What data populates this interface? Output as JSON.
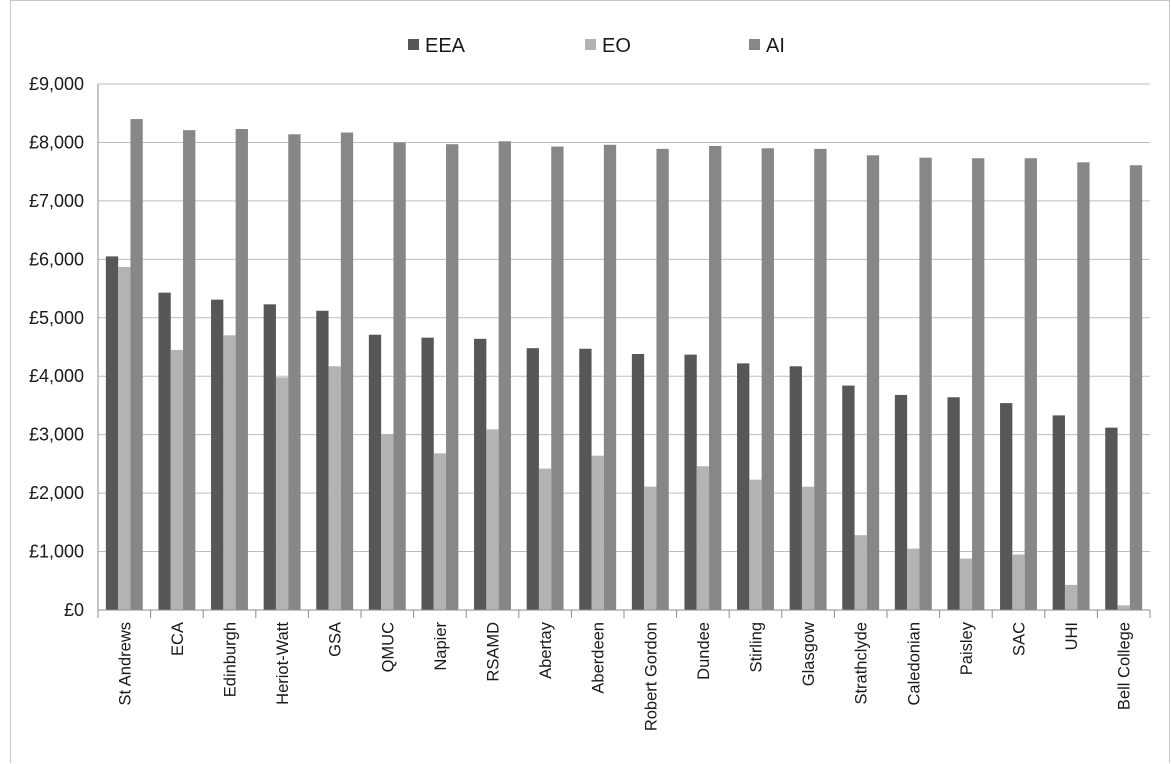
{
  "chart_data": {
    "type": "bar",
    "title": "",
    "xlabel": "",
    "ylabel": "",
    "ylim": [
      0,
      9000
    ],
    "yticks": [
      "£0",
      "£1,000",
      "£2,000",
      "£3,000",
      "£4,000",
      "£5,000",
      "£6,000",
      "£7,000",
      "£8,000",
      "£9,000"
    ],
    "grid": true,
    "legend_position": "top",
    "categories": [
      "St Andrews",
      "ECA",
      "Edinburgh",
      "Heriot-Watt",
      "GSA",
      "QMUC",
      "Napier",
      "RSAMD",
      "Abertay",
      "Aberdeen",
      "Robert Gordon",
      "Dundee",
      "Stirling",
      "Glasgow",
      "Strathclyde",
      "Caledonian",
      "Paisley",
      "SAC",
      "UHI",
      "Bell College"
    ],
    "series": [
      {
        "name": "EEA",
        "color": "#575757",
        "values": [
          6050,
          5430,
          5310,
          5230,
          5120,
          4710,
          4660,
          4640,
          4480,
          4470,
          4380,
          4370,
          4220,
          4170,
          3840,
          3680,
          3640,
          3540,
          3330,
          3120
        ]
      },
      {
        "name": "EO",
        "color": "#b3b3b3",
        "values": [
          5870,
          4450,
          4700,
          3980,
          4170,
          3010,
          2680,
          3090,
          2420,
          2640,
          2110,
          2460,
          2230,
          2110,
          1280,
          1050,
          880,
          950,
          430,
          80
        ]
      },
      {
        "name": "AI",
        "color": "#878787",
        "values": [
          8400,
          8210,
          8230,
          8140,
          8170,
          8000,
          7970,
          8020,
          7930,
          7960,
          7890,
          7940,
          7900,
          7890,
          7780,
          7740,
          7730,
          7730,
          7660,
          7610
        ]
      }
    ]
  }
}
